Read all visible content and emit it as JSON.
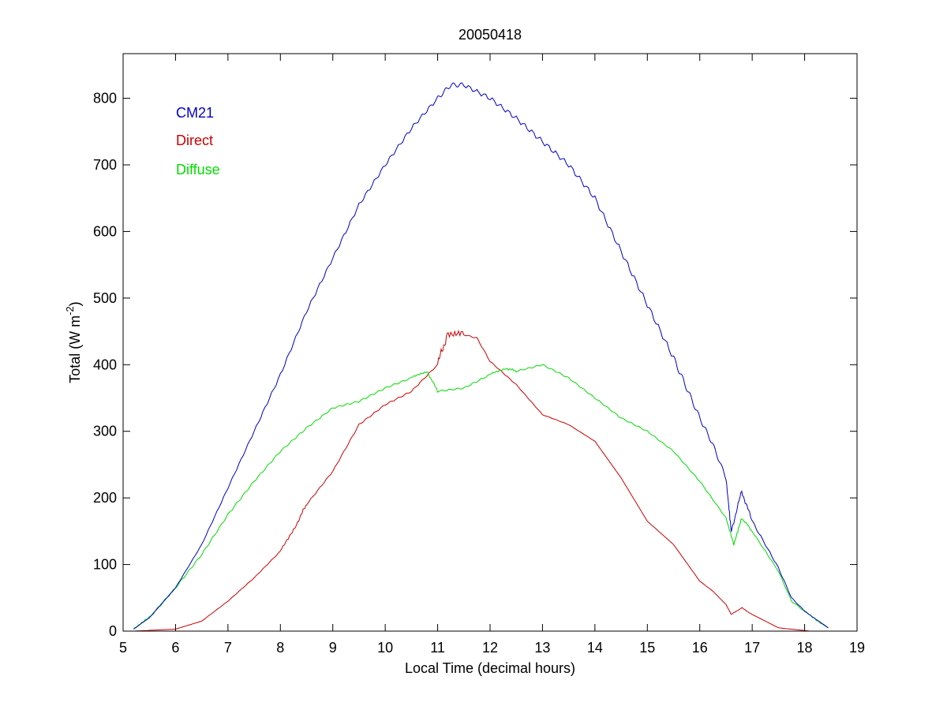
{
  "chart_data": {
    "type": "line",
    "title": "20050418",
    "xlabel": "Local Time (decimal hours)",
    "ylabel_parts": {
      "main": "Total (W m",
      "sup": "-2",
      "end": ")"
    },
    "xlim": [
      5,
      19
    ],
    "ylim": [
      0,
      867
    ],
    "xticks": [
      5,
      6,
      7,
      8,
      9,
      10,
      11,
      12,
      13,
      14,
      15,
      16,
      17,
      18,
      19
    ],
    "yticks": [
      0,
      100,
      200,
      300,
      400,
      500,
      600,
      700,
      800
    ],
    "grid": false,
    "legend_position": "top-left",
    "series": [
      {
        "name": "CM21",
        "color": "#0000cc",
        "x": [
          5.2,
          5.5,
          6,
          6.5,
          7,
          7.5,
          8,
          8.5,
          9,
          9.5,
          10,
          10.5,
          11,
          11.25,
          11.5,
          12,
          12.5,
          13,
          13.5,
          14,
          14.5,
          15,
          15.5,
          15.75,
          16,
          16.25,
          16.5,
          16.6,
          16.8,
          17,
          17.5,
          17.75,
          18,
          18.45
        ],
        "y": [
          3,
          20,
          65,
          130,
          215,
          300,
          385,
          480,
          560,
          640,
          700,
          755,
          800,
          820,
          820,
          800,
          770,
          735,
          700,
          650,
          570,
          490,
          410,
          365,
          320,
          280,
          230,
          150,
          210,
          165,
          95,
          50,
          30,
          5
        ]
      },
      {
        "name": "Direct",
        "color": "#cc0000",
        "x": [
          5.2,
          6,
          6.5,
          7,
          7.5,
          8,
          8.3,
          8.5,
          9,
          9.5,
          10,
          10.5,
          11,
          11.2,
          11.5,
          11.75,
          12,
          12.5,
          13,
          13.5,
          14,
          14.5,
          15,
          15.5,
          16,
          16.25,
          16.5,
          16.6,
          16.8,
          17,
          17.5,
          18.1
        ],
        "y": [
          0,
          3,
          15,
          45,
          80,
          120,
          160,
          190,
          240,
          310,
          340,
          360,
          400,
          450,
          445,
          440,
          405,
          370,
          325,
          310,
          285,
          230,
          165,
          130,
          75,
          60,
          40,
          25,
          35,
          25,
          5,
          0
        ]
      },
      {
        "name": "Diffuse",
        "color": "#00dd00",
        "x": [
          5.2,
          5.5,
          6,
          6.5,
          7,
          7.5,
          8,
          8.5,
          9,
          9.5,
          10,
          10.5,
          10.8,
          11,
          11.5,
          12,
          12.3,
          12.5,
          13,
          13.5,
          14,
          14.5,
          15,
          15.5,
          16,
          16.5,
          16.65,
          16.8,
          17,
          17.5,
          17.75,
          18,
          18.45
        ],
        "y": [
          3,
          20,
          65,
          115,
          175,
          225,
          270,
          305,
          335,
          345,
          365,
          380,
          390,
          360,
          365,
          385,
          395,
          390,
          400,
          380,
          350,
          320,
          300,
          270,
          225,
          170,
          130,
          170,
          150,
          90,
          45,
          30,
          5
        ]
      }
    ]
  }
}
